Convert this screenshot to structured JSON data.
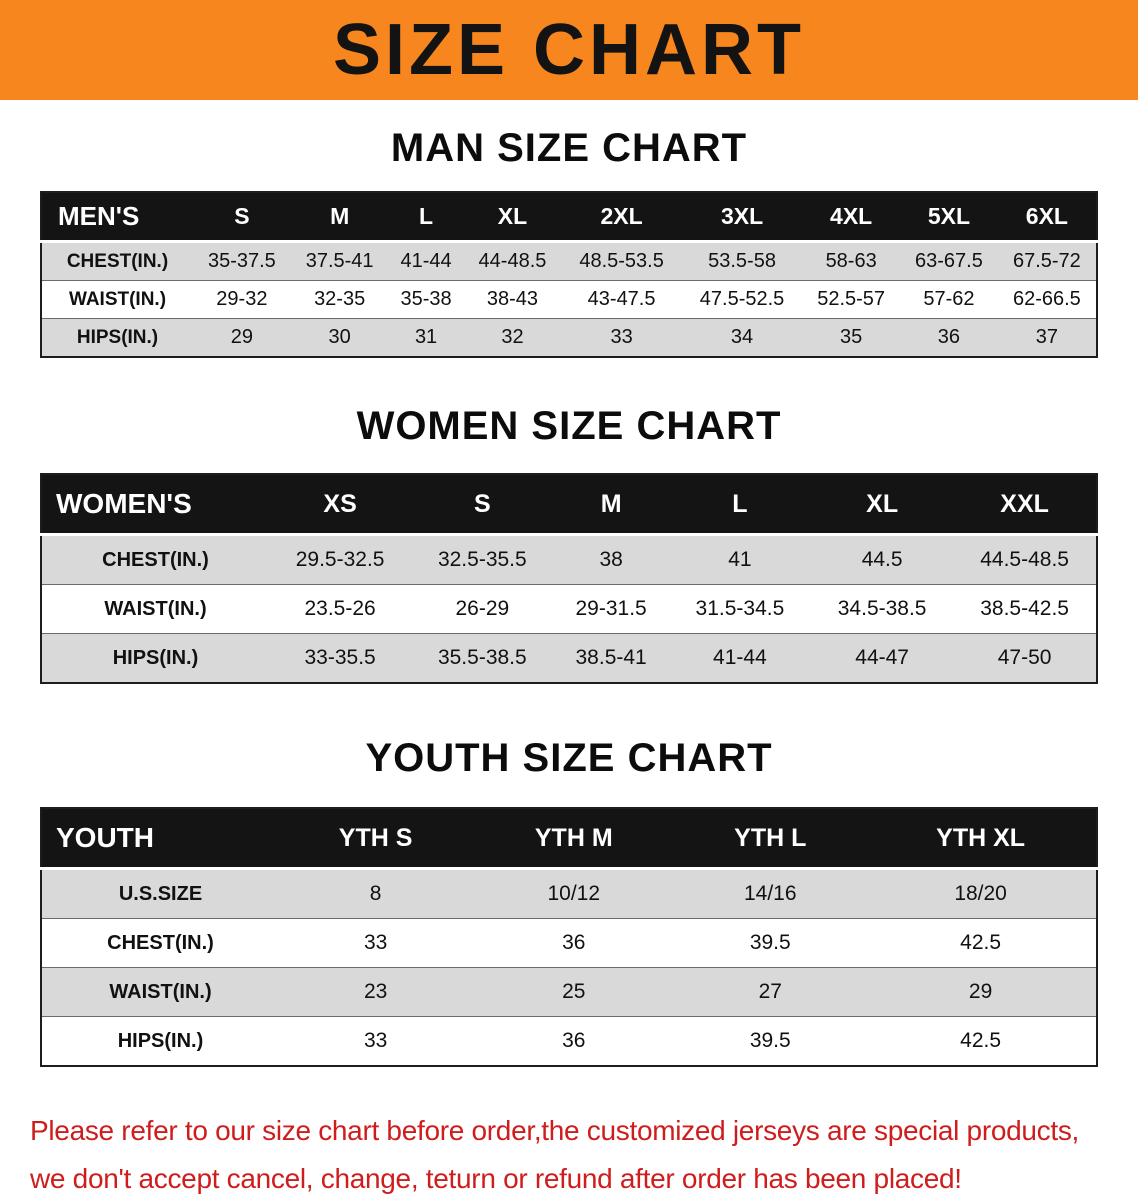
{
  "theme": {
    "banner_orange": "#f6861d",
    "banner_text": "#131313",
    "header_black": "#141414",
    "header_text": "#ffffff",
    "row_shade": "#d9d9d9",
    "footer_red": "#cf1d1d"
  },
  "banner": {
    "title": "SIZE CHART"
  },
  "sections": [
    {
      "heading": "MAN SIZE CHART",
      "corner_label": "MEN'S",
      "columns": [
        "S",
        "M",
        "L",
        "XL",
        "2XL",
        "3XL",
        "4XL",
        "5XL",
        "6XL"
      ],
      "rows": [
        {
          "label": "CHEST(IN.)",
          "values": [
            "35-37.5",
            "37.5-41",
            "41-44",
            "44-48.5",
            "48.5-53.5",
            "53.5-58",
            "58-63",
            "63-67.5",
            "67.5-72"
          ]
        },
        {
          "label": "WAIST(IN.)",
          "values": [
            "29-32",
            "32-35",
            "35-38",
            "38-43",
            "43-47.5",
            "47.5-52.5",
            "52.5-57",
            "57-62",
            "62-66.5"
          ]
        },
        {
          "label": "HIPS(IN.)",
          "values": [
            "29",
            "30",
            "31",
            "32",
            "33",
            "34",
            "35",
            "36",
            "37"
          ]
        }
      ]
    },
    {
      "heading": "WOMEN SIZE CHART",
      "corner_label": "WOMEN'S",
      "columns": [
        "XS",
        "S",
        "M",
        "L",
        "XL",
        "XXL"
      ],
      "rows": [
        {
          "label": "CHEST(IN.)",
          "values": [
            "29.5-32.5",
            "32.5-35.5",
            "38",
            "41",
            "44.5",
            "44.5-48.5"
          ]
        },
        {
          "label": "WAIST(IN.)",
          "values": [
            "23.5-26",
            "26-29",
            "29-31.5",
            "31.5-34.5",
            "34.5-38.5",
            "38.5-42.5"
          ]
        },
        {
          "label": "HIPS(IN.)",
          "values": [
            "33-35.5",
            "35.5-38.5",
            "38.5-41",
            "41-44",
            "44-47",
            "47-50"
          ]
        }
      ]
    },
    {
      "heading": "YOUTH SIZE CHART",
      "corner_label": "YOUTH",
      "columns": [
        "YTH S",
        "YTH M",
        "YTH L",
        "YTH XL"
      ],
      "rows": [
        {
          "label": "U.S.SIZE",
          "values": [
            "8",
            "10/12",
            "14/16",
            "18/20"
          ]
        },
        {
          "label": "CHEST(IN.)",
          "values": [
            "33",
            "36",
            "39.5",
            "42.5"
          ]
        },
        {
          "label": "WAIST(IN.)",
          "values": [
            "23",
            "25",
            "27",
            "29"
          ]
        },
        {
          "label": "HIPS(IN.)",
          "values": [
            "33",
            "36",
            "39.5",
            "42.5"
          ]
        }
      ]
    }
  ],
  "footer": {
    "lines": [
      "Please refer to our size chart before order,the customized jerseys are special products,",
      "we don't accept cancel, change, teturn or refund after order has been placed!"
    ]
  }
}
